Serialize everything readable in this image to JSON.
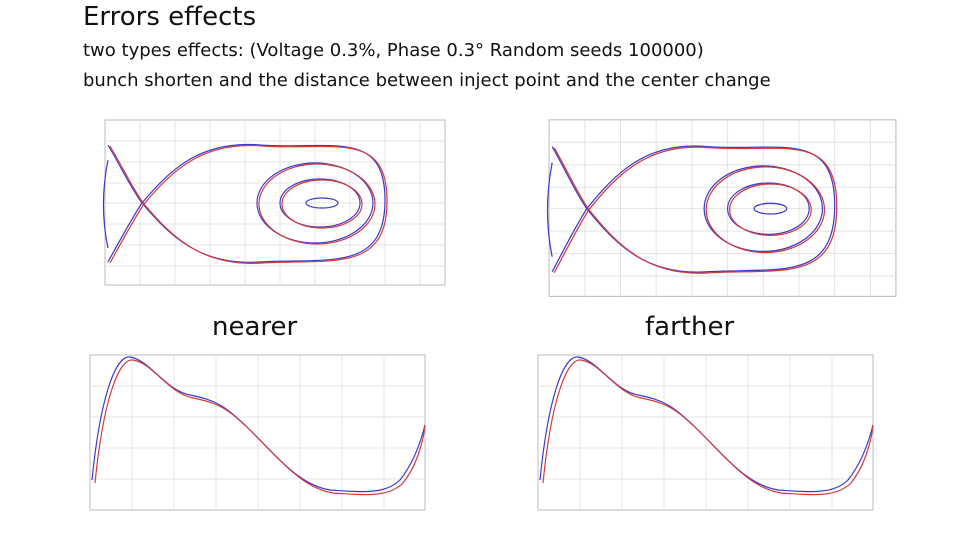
{
  "header": {
    "title": "Errors effects",
    "lines": [
      "two types effects: (Voltage 0.3%, Phase 0.3° Random seeds 100000)",
      "bunch shorten and the distance between inject point and the center change"
    ]
  },
  "panels": [
    {
      "label": "nearer"
    },
    {
      "label": "farther"
    }
  ]
}
